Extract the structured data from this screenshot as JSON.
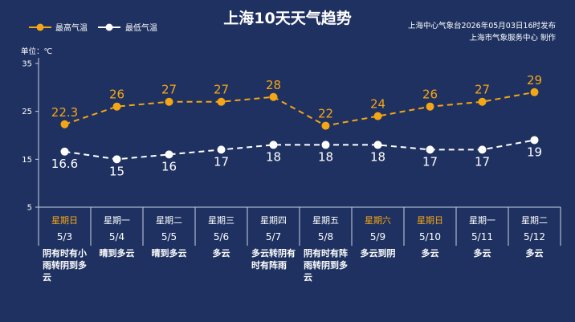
{
  "header": {
    "title": "上海10天天气趋势",
    "publisher": "上海中心气象台2026年05月03日16时发布",
    "producer": "上海市气象服务中心 制作"
  },
  "colors": {
    "background": "#1e3160",
    "high": "#f5a615",
    "low": "#ffffff",
    "weekend": "#f5a615",
    "weekday": "#ffffff",
    "grid": "#c9d2e6"
  },
  "chart_data": {
    "type": "line",
    "unit_label": "单位：℃",
    "ylim": [
      5,
      35
    ],
    "yticks": [
      5,
      15,
      25,
      35
    ],
    "legend_position": "top-left",
    "grid": false,
    "series": [
      {
        "name": "最高气温",
        "values": [
          22.3,
          26,
          27,
          27,
          28,
          22,
          24,
          26,
          27,
          29
        ],
        "labels": [
          "22.3",
          "26",
          "27",
          "27",
          "28",
          "22",
          "24",
          "26",
          "27",
          "29"
        ]
      },
      {
        "name": "最低气温",
        "values": [
          16.6,
          15,
          16,
          17,
          18,
          18,
          18,
          17,
          17,
          19
        ],
        "labels": [
          "16.6",
          "15",
          "16",
          "17",
          "18",
          "18",
          "18",
          "17",
          "17",
          "19"
        ]
      }
    ],
    "days": [
      {
        "weekday": "星期日",
        "date": "5/3",
        "weekend": true,
        "condition": [
          "阴有时有小",
          "雨转阴到多",
          "云"
        ]
      },
      {
        "weekday": "星期一",
        "date": "5/4",
        "weekend": false,
        "condition": [
          "晴到多云"
        ]
      },
      {
        "weekday": "星期二",
        "date": "5/5",
        "weekend": false,
        "condition": [
          "晴到多云"
        ]
      },
      {
        "weekday": "星期三",
        "date": "5/6",
        "weekend": false,
        "condition": [
          "多云"
        ]
      },
      {
        "weekday": "星期四",
        "date": "5/7",
        "weekend": false,
        "condition": [
          "多云转阴有",
          "时有阵雨"
        ]
      },
      {
        "weekday": "星期五",
        "date": "5/8",
        "weekend": false,
        "condition": [
          "阴有时有阵",
          "雨转阴到多",
          "云"
        ]
      },
      {
        "weekday": "星期六",
        "date": "5/9",
        "weekend": true,
        "condition": [
          "多云到阴"
        ]
      },
      {
        "weekday": "星期日",
        "date": "5/10",
        "weekend": true,
        "condition": [
          "多云"
        ]
      },
      {
        "weekday": "星期一",
        "date": "5/11",
        "weekend": false,
        "condition": [
          "多云"
        ]
      },
      {
        "weekday": "星期二",
        "date": "5/12",
        "weekend": false,
        "condition": [
          "多云"
        ]
      }
    ]
  }
}
